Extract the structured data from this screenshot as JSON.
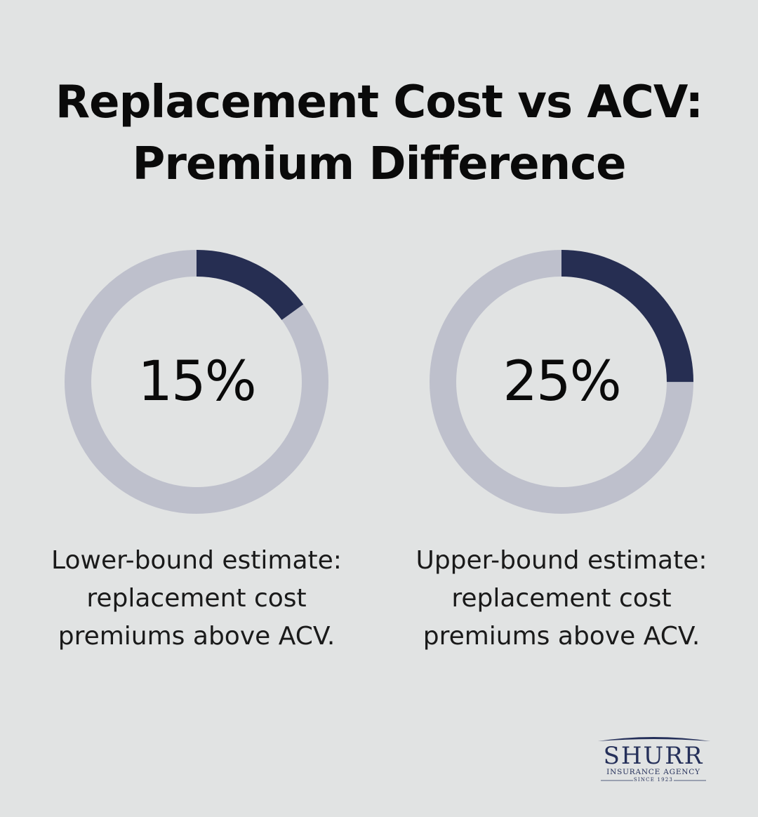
{
  "title": {
    "line1": "Replacement Cost vs ACV:",
    "line2": "Premium Difference"
  },
  "chart_data": [
    {
      "type": "pie",
      "value": 15,
      "value_label": "15%",
      "caption_lines": [
        "Lower-bound estimate:",
        "replacement cost",
        "premiums above ACV."
      ]
    },
    {
      "type": "pie",
      "value": 25,
      "value_label": "25%",
      "caption_lines": [
        "Upper-bound estimate:",
        "replacement cost",
        "premiums above ACV."
      ]
    }
  ],
  "colors": {
    "background": "#e1e3e3",
    "track": "#bec0cc",
    "fill": "#262e52",
    "text": "#0a0a0a"
  },
  "logo": {
    "name": "SHURR",
    "subtitle": "INSURANCE AGENCY",
    "since": "SINCE 1923"
  }
}
